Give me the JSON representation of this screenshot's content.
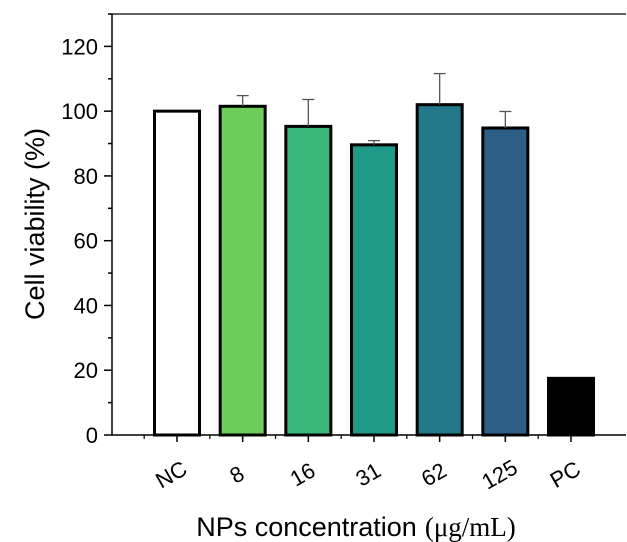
{
  "chart_data": {
    "type": "bar",
    "title": "",
    "xlabel": "NPs concentration",
    "xlabel_unit": "(μg/mL)",
    "ylabel": "Cell viability (%)",
    "ylim": [
      0,
      130
    ],
    "yticks": [
      "0",
      "20",
      "40",
      "60",
      "80",
      "100",
      "120"
    ],
    "categories": [
      "NC",
      "8",
      "16",
      "31",
      "62",
      "125",
      "PC"
    ],
    "values": [
      100,
      101.5,
      95.3,
      89.6,
      102,
      94.8,
      17.5
    ],
    "errors": [
      0,
      3.3,
      8.3,
      1.3,
      9.6,
      5.1,
      0
    ],
    "colors": [
      "#ffffff",
      "#6ccd5a",
      "#3ab77b",
      "#1f9a89",
      "#23788a",
      "#2d5e86",
      "#000000"
    ],
    "tick_label_rotation": "diagonal",
    "grid": false,
    "legend": "none"
  }
}
